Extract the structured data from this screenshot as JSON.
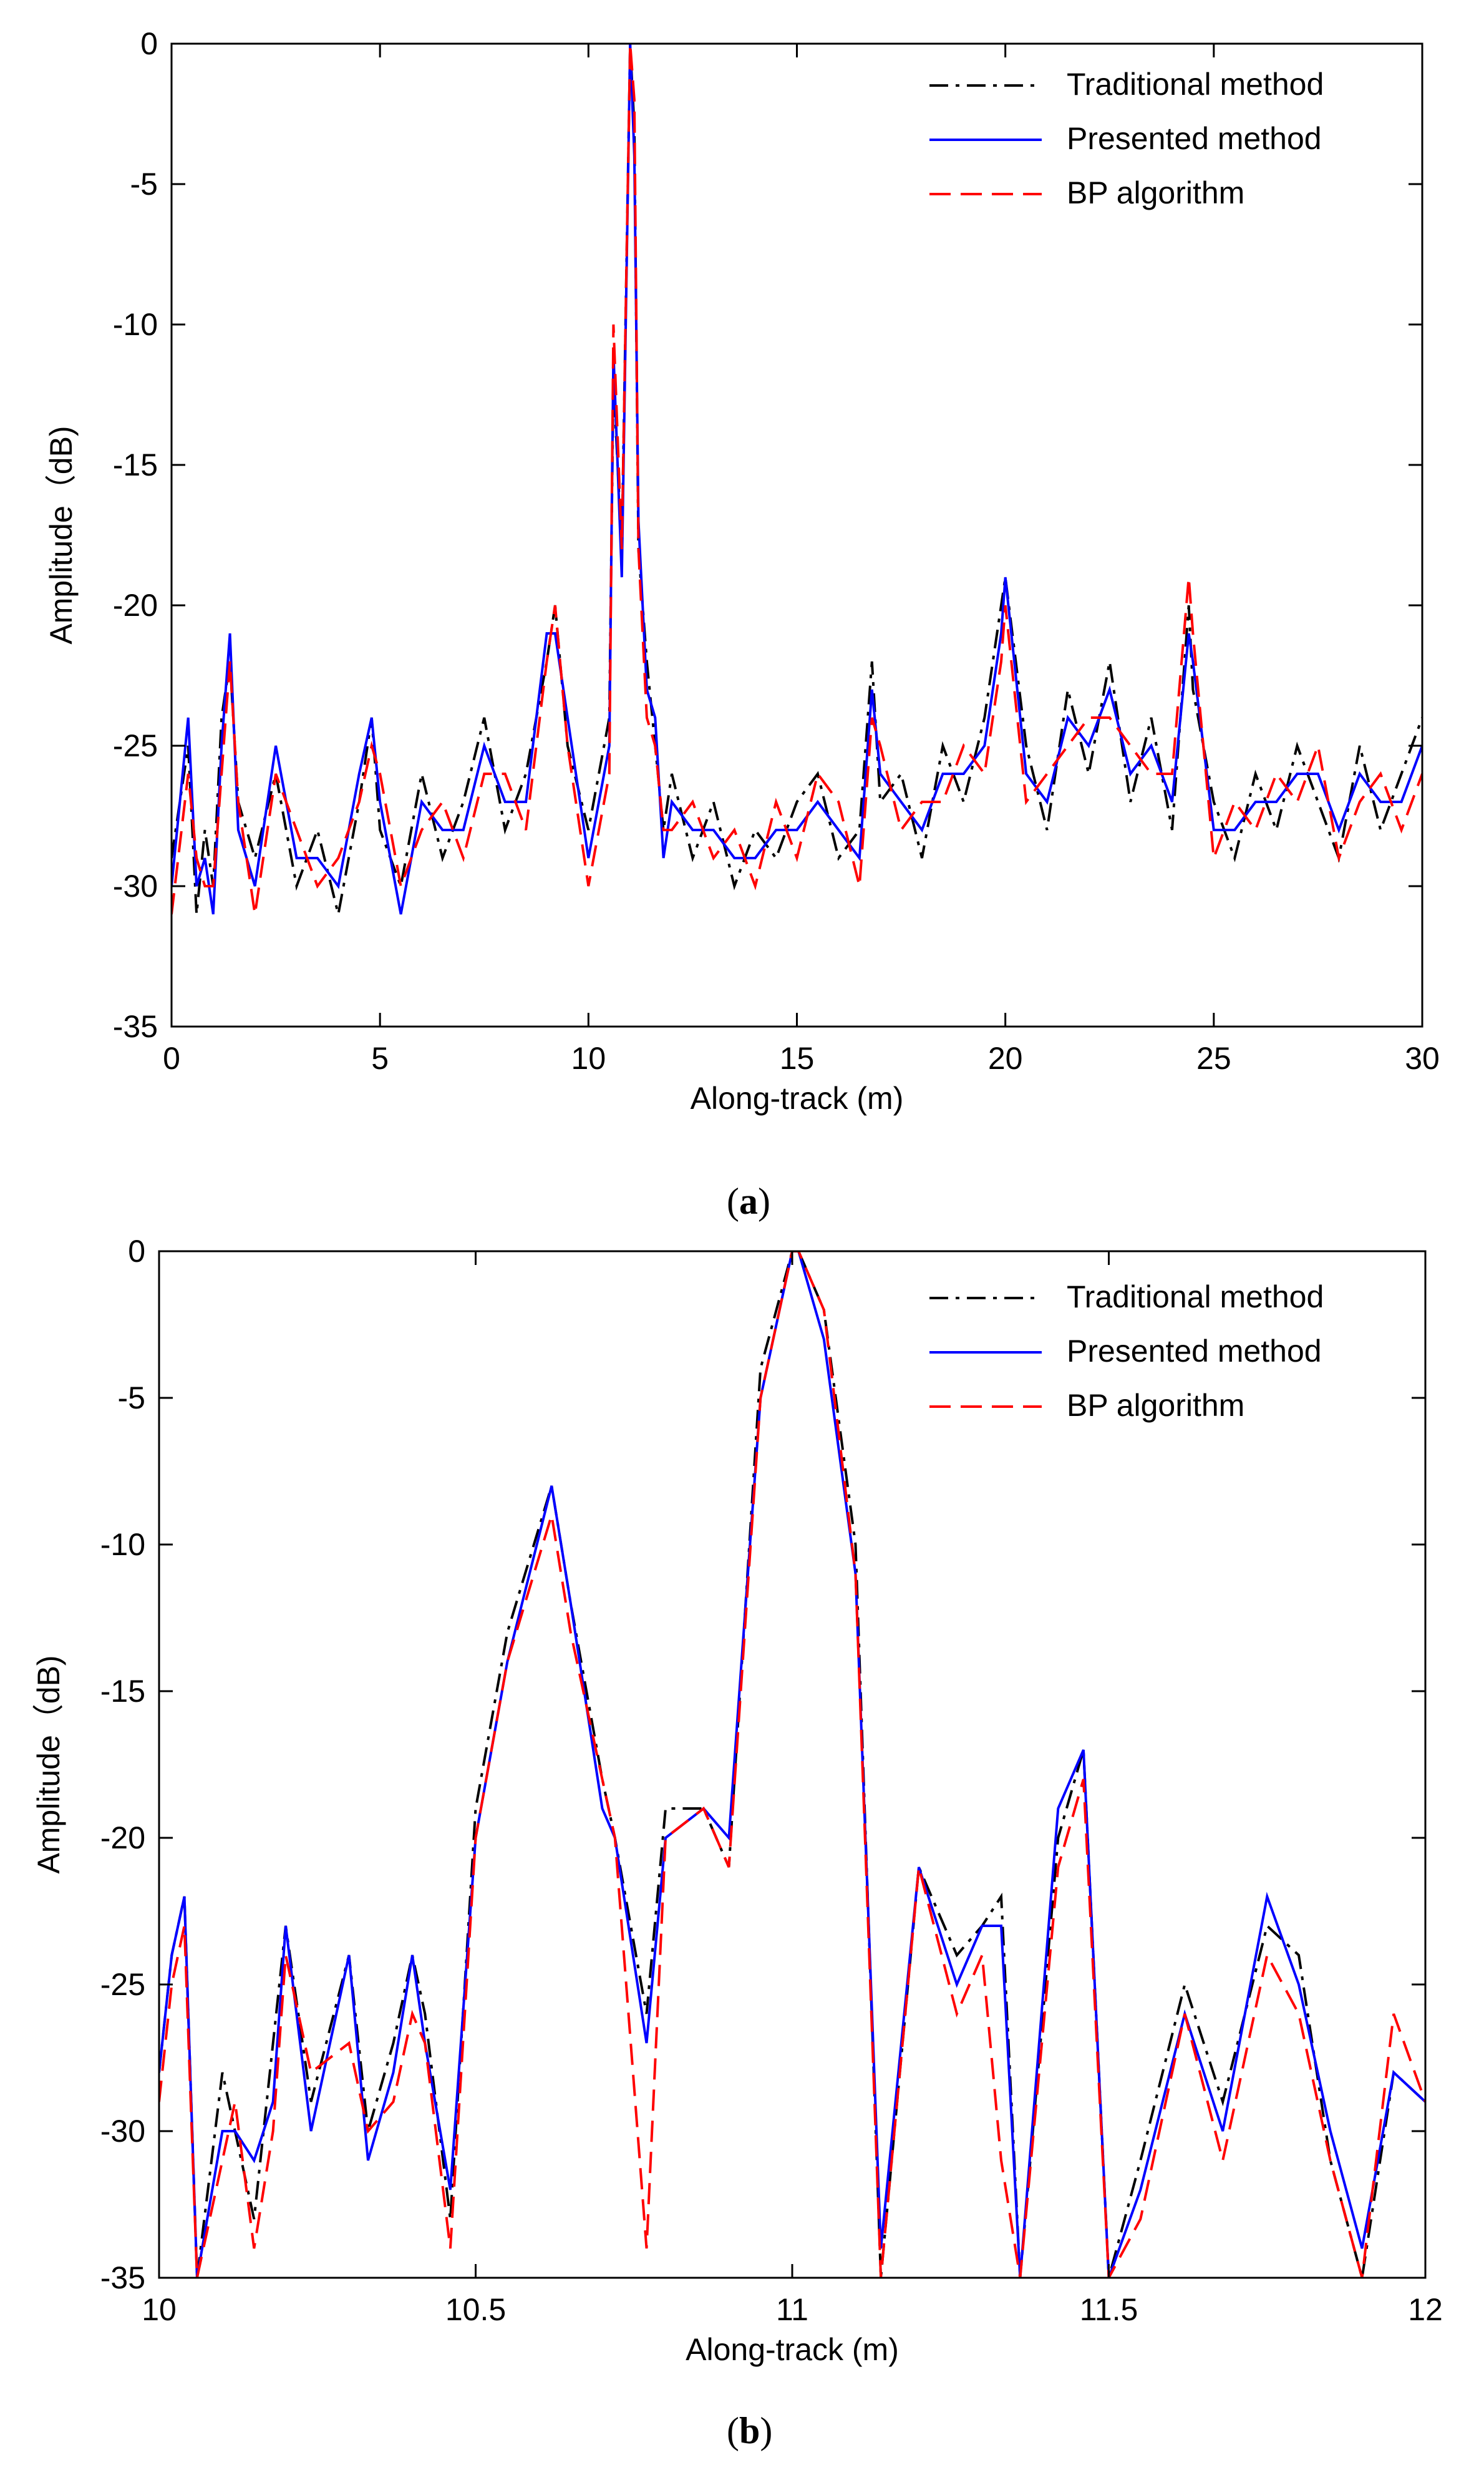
{
  "chart_data": [
    {
      "type": "line",
      "panel_label": "a",
      "panel_label_open": "(",
      "panel_label_close": ")",
      "xlabel": "Along-track (m)",
      "ylabel": "Amplitude（dB)",
      "xlim": [
        0,
        30
      ],
      "ylim": [
        -35,
        0
      ],
      "xticks": [
        0,
        5,
        10,
        15,
        20,
        25,
        30
      ],
      "yticks": [
        0,
        -5,
        -10,
        -15,
        -20,
        -25,
        -30,
        -35
      ],
      "grid": false,
      "legend_position": "top-right",
      "series": [
        {
          "name": "Traditional method",
          "color": "#000000",
          "style": "dash-dot",
          "x": [
            0,
            0.4,
            0.6,
            0.8,
            1.0,
            1.2,
            1.4,
            1.6,
            2.0,
            2.5,
            3.0,
            3.5,
            4.0,
            4.5,
            4.8,
            5.0,
            5.5,
            6.0,
            6.5,
            7.0,
            7.5,
            8.0,
            8.5,
            9.0,
            9.2,
            9.5,
            10.0,
            10.5,
            10.6,
            10.8,
            11.0,
            11.1,
            11.2,
            11.4,
            11.6,
            11.8,
            12.0,
            12.5,
            13.0,
            13.5,
            14.0,
            14.5,
            15.0,
            15.5,
            16.0,
            16.5,
            16.8,
            17.0,
            17.5,
            18.0,
            18.5,
            19.0,
            19.5,
            19.9,
            20.0,
            20.5,
            21.0,
            21.5,
            22.0,
            22.5,
            23.0,
            23.5,
            24.0,
            24.4,
            24.5,
            25.0,
            25.5,
            26.0,
            26.5,
            27.0,
            27.5,
            28.0,
            28.5,
            29.0,
            29.5,
            30.0
          ],
          "y": [
            -29,
            -25,
            -31,
            -28,
            -30,
            -24,
            -22,
            -27,
            -29,
            -26,
            -30,
            -28,
            -31,
            -27,
            -24,
            -28,
            -30,
            -26,
            -29,
            -27,
            -24,
            -28,
            -26,
            -22,
            -20,
            -25,
            -28,
            -24,
            -12,
            -18,
            0,
            -3,
            -18,
            -22,
            -25,
            -28,
            -26,
            -29,
            -27,
            -30,
            -28,
            -29,
            -27,
            -26,
            -29,
            -28,
            -22,
            -27,
            -26,
            -29,
            -25,
            -27,
            -24,
            -20,
            -19,
            -25,
            -28,
            -23,
            -26,
            -22,
            -27,
            -24,
            -28,
            -20,
            -23,
            -27,
            -29,
            -26,
            -28,
            -25,
            -27,
            -29,
            -25,
            -28,
            -26,
            -24
          ]
        },
        {
          "name": "Presented method",
          "color": "#0000ff",
          "style": "solid",
          "x": [
            0,
            0.4,
            0.6,
            0.8,
            1.0,
            1.2,
            1.4,
            1.6,
            2.0,
            2.5,
            3.0,
            3.5,
            4.0,
            4.5,
            4.8,
            5.0,
            5.5,
            6.0,
            6.5,
            7.0,
            7.5,
            8.0,
            8.5,
            9.0,
            9.2,
            9.5,
            10.0,
            10.5,
            10.6,
            10.8,
            11.0,
            11.1,
            11.2,
            11.4,
            11.6,
            11.8,
            12.0,
            12.5,
            13.0,
            13.5,
            14.0,
            14.5,
            15.0,
            15.5,
            16.0,
            16.5,
            16.8,
            17.0,
            17.5,
            18.0,
            18.5,
            19.0,
            19.5,
            19.9,
            20.0,
            20.5,
            21.0,
            21.5,
            22.0,
            22.5,
            23.0,
            23.5,
            24.0,
            24.4,
            24.5,
            25.0,
            25.5,
            26.0,
            26.5,
            27.0,
            27.5,
            28.0,
            28.5,
            29.0,
            29.5,
            30.0
          ],
          "y": [
            -30,
            -24,
            -30,
            -29,
            -31,
            -25,
            -21,
            -28,
            -30,
            -25,
            -29,
            -29,
            -30,
            -26,
            -24,
            -27,
            -31,
            -27,
            -28,
            -28,
            -25,
            -27,
            -27,
            -21,
            -21,
            -24,
            -29,
            -25,
            -11,
            -19,
            0,
            -4,
            -17,
            -23,
            -24,
            -29,
            -27,
            -28,
            -28,
            -29,
            -29,
            -28,
            -28,
            -27,
            -28,
            -29,
            -23,
            -26,
            -27,
            -28,
            -26,
            -26,
            -25,
            -21,
            -19,
            -26,
            -27,
            -24,
            -25,
            -23,
            -26,
            -25,
            -27,
            -21,
            -22,
            -28,
            -28,
            -27,
            -27,
            -26,
            -26,
            -28,
            -26,
            -27,
            -27,
            -25
          ]
        },
        {
          "name": "BP algorithm",
          "color": "#ff0000",
          "style": "dashed",
          "x": [
            0,
            0.4,
            0.6,
            0.8,
            1.0,
            1.2,
            1.4,
            1.6,
            2.0,
            2.5,
            3.0,
            3.5,
            4.0,
            4.5,
            4.8,
            5.0,
            5.5,
            6.0,
            6.5,
            7.0,
            7.5,
            8.0,
            8.5,
            9.0,
            9.2,
            9.5,
            10.0,
            10.5,
            10.6,
            10.8,
            11.0,
            11.1,
            11.2,
            11.4,
            11.6,
            11.8,
            12.0,
            12.5,
            13.0,
            13.5,
            14.0,
            14.5,
            15.0,
            15.5,
            16.0,
            16.5,
            16.8,
            17.0,
            17.5,
            18.0,
            18.5,
            19.0,
            19.5,
            19.9,
            20.0,
            20.5,
            21.0,
            21.5,
            22.0,
            22.5,
            23.0,
            23.5,
            24.0,
            24.4,
            24.5,
            25.0,
            25.5,
            26.0,
            26.5,
            27.0,
            27.5,
            28.0,
            28.5,
            29.0,
            29.5,
            30.0
          ],
          "y": [
            -31,
            -26,
            -29,
            -30,
            -30,
            -26,
            -22,
            -27,
            -31,
            -26,
            -28,
            -30,
            -29,
            -27,
            -25,
            -26,
            -30,
            -28,
            -27,
            -29,
            -26,
            -26,
            -28,
            -22,
            -20,
            -25,
            -30,
            -26,
            -10,
            -18,
            0,
            -2,
            -18,
            -24,
            -25,
            -28,
            -28,
            -27,
            -29,
            -28,
            -30,
            -27,
            -29,
            -26,
            -27,
            -30,
            -24,
            -25,
            -28,
            -27,
            -27,
            -25,
            -26,
            -22,
            -20,
            -27,
            -26,
            -25,
            -24,
            -24,
            -25,
            -26,
            -26,
            -19,
            -21,
            -29,
            -27,
            -28,
            -26,
            -27,
            -25,
            -29,
            -27,
            -26,
            -28,
            -26
          ]
        }
      ]
    },
    {
      "type": "line",
      "panel_label": "b",
      "panel_label_open": "(",
      "panel_label_close": ")",
      "xlabel": "Along-track (m)",
      "ylabel": "Amplitude（dB)",
      "xlim": [
        10,
        12
      ],
      "ylim": [
        -35,
        0
      ],
      "xticks": [
        10,
        10.5,
        11,
        11.5,
        12
      ],
      "yticks": [
        0,
        -5,
        -10,
        -15,
        -20,
        -25,
        -30,
        -35
      ],
      "grid": false,
      "legend_position": "top-right",
      "series": [
        {
          "name": "Traditional method",
          "color": "#000000",
          "style": "dash-dot",
          "x": [
            10.0,
            10.02,
            10.04,
            10.06,
            10.1,
            10.12,
            10.15,
            10.18,
            10.2,
            10.24,
            10.3,
            10.33,
            10.37,
            10.4,
            10.42,
            10.46,
            10.5,
            10.55,
            10.62,
            10.65,
            10.7,
            10.72,
            10.77,
            10.8,
            10.86,
            10.9,
            10.95,
            11.0,
            11.01,
            11.05,
            11.1,
            11.14,
            11.2,
            11.26,
            11.3,
            11.33,
            11.36,
            11.42,
            11.46,
            11.5,
            11.55,
            11.62,
            11.68,
            11.75,
            11.8,
            11.85,
            11.9,
            11.95,
            12.0
          ],
          "y": [
            -28,
            -24,
            -22,
            -35,
            -28,
            -30,
            -33,
            -27,
            -23,
            -29,
            -24,
            -30,
            -27,
            -24,
            -26,
            -33,
            -19,
            -13,
            -8,
            -12,
            -18,
            -20,
            -26,
            -19,
            -19,
            -21,
            -4,
            0,
            0,
            -2,
            -10,
            -35,
            -21,
            -24,
            -23,
            -22,
            -35,
            -20,
            -17,
            -35,
            -31,
            -25,
            -29,
            -23,
            -24,
            -31,
            -35,
            -28,
            -29
          ]
        },
        {
          "name": "Presented method",
          "color": "#0000ff",
          "style": "solid",
          "x": [
            10.0,
            10.02,
            10.04,
            10.06,
            10.1,
            10.12,
            10.15,
            10.18,
            10.2,
            10.24,
            10.3,
            10.33,
            10.37,
            10.4,
            10.42,
            10.46,
            10.5,
            10.55,
            10.62,
            10.65,
            10.7,
            10.72,
            10.77,
            10.8,
            10.86,
            10.9,
            10.95,
            11.0,
            11.01,
            11.05,
            11.1,
            11.14,
            11.2,
            11.26,
            11.3,
            11.33,
            11.36,
            11.42,
            11.46,
            11.5,
            11.55,
            11.62,
            11.68,
            11.75,
            11.8,
            11.85,
            11.9,
            11.95,
            12.0
          ],
          "y": [
            -28,
            -24,
            -22,
            -35,
            -30,
            -30,
            -31,
            -29,
            -23,
            -30,
            -24,
            -31,
            -28,
            -24,
            -27,
            -32,
            -20,
            -14,
            -8,
            -12,
            -19,
            -20,
            -27,
            -20,
            -19,
            -20,
            -5,
            0,
            0,
            -3,
            -11,
            -34,
            -21,
            -25,
            -23,
            -23,
            -35,
            -19,
            -17,
            -35,
            -32,
            -26,
            -30,
            -22,
            -25,
            -30,
            -34,
            -28,
            -29
          ]
        },
        {
          "name": "BP algorithm",
          "color": "#ff0000",
          "style": "dashed",
          "x": [
            10.0,
            10.02,
            10.04,
            10.06,
            10.1,
            10.12,
            10.15,
            10.18,
            10.2,
            10.24,
            10.3,
            10.33,
            10.37,
            10.4,
            10.42,
            10.46,
            10.5,
            10.55,
            10.62,
            10.65,
            10.7,
            10.72,
            10.77,
            10.8,
            10.86,
            10.9,
            10.95,
            11.0,
            11.01,
            11.05,
            11.1,
            11.14,
            11.2,
            11.26,
            11.3,
            11.33,
            11.36,
            11.42,
            11.46,
            11.5,
            11.55,
            11.62,
            11.68,
            11.75,
            11.8,
            11.85,
            11.9,
            11.95,
            12.0
          ],
          "y": [
            -29,
            -25,
            -23,
            -35,
            -31,
            -29,
            -34,
            -30,
            -24,
            -28,
            -27,
            -30,
            -29,
            -26,
            -27,
            -34,
            -20,
            -14,
            -9,
            -13,
            -18,
            -20,
            -34,
            -20,
            -19,
            -21,
            -5,
            0,
            0,
            -2,
            -11,
            -35,
            -21,
            -26,
            -24,
            -31,
            -35,
            -21,
            -18,
            -35,
            -33,
            -26,
            -31,
            -24,
            -26,
            -31,
            -35,
            -26,
            -29
          ]
        }
      ]
    }
  ]
}
